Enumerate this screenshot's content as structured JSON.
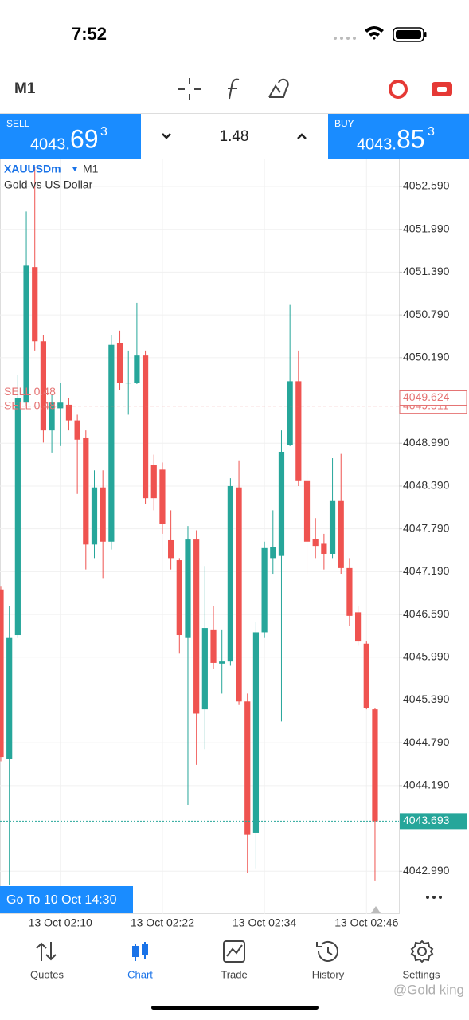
{
  "status_bar": {
    "time": "7:52"
  },
  "toolbar": {
    "timeframe": "M1"
  },
  "trade_panel": {
    "sell": {
      "label": "SELL",
      "price": "4043.",
      "price_big": "69",
      "price_sup": "3"
    },
    "volume": "1.48",
    "buy": {
      "label": "BUY",
      "price": "4043.",
      "price_big": "85",
      "price_sup": "3"
    }
  },
  "chart_data": {
    "type": "candlestick",
    "symbol": "XAUUSDm",
    "timeframe": "M1",
    "subtitle": "Gold vs US Dollar",
    "categories": [
      null,
      null,
      null,
      null,
      null,
      null,
      null,
      "13 Oct 02:10",
      null,
      null,
      null,
      null,
      null,
      null,
      null,
      null,
      null,
      null,
      null,
      "13 Oct 02:22",
      null,
      null,
      null,
      null,
      null,
      null,
      null,
      null,
      null,
      null,
      null,
      "13 Oct 02:34",
      null,
      null,
      null,
      null,
      null,
      null,
      null,
      null,
      null,
      null,
      null,
      "13 Oct 02:46",
      null
    ],
    "open": [
      4046.94,
      4044.56,
      4046.3,
      4049.56,
      4051.46,
      4050.42,
      4049.17,
      4049.48,
      4049.53,
      4049.31,
      4049.06,
      4047.57,
      4048.37,
      4047.61,
      4050.4,
      4049.83,
      4049.84,
      4050.22,
      4048.69,
      4048.62,
      4047.63,
      4047.35,
      4046.27,
      4047.64,
      4045.26,
      4046.38,
      4045.9,
      4045.93,
      4048.37,
      4045.37,
      4043.53,
      4046.34,
      4047.38,
      4047.41,
      4048.97,
      4049.86,
      4048.47,
      4047.65,
      4047.58,
      4047.44,
      4048.18,
      4047.24,
      4046.62,
      4046.18,
      4045.26
    ],
    "high": [
      4046.99,
      4046.71,
      4049.95,
      4052.24,
      4052.86,
      4050.51,
      4049.67,
      4049.84,
      4049.62,
      4049.39,
      4049.17,
      4048.61,
      4048.61,
      4050.51,
      4050.57,
      4050.29,
      4050.96,
      4050.29,
      4048.83,
      4048.72,
      4048.05,
      4047.38,
      4047.83,
      4047.77,
      4047.27,
      4046.71,
      4046.38,
      4048.5,
      4048.75,
      4045.48,
      4046.49,
      4047.61,
      4048.05,
      4049.17,
      4050.93,
      4050.29,
      4048.61,
      4047.94,
      4047.72,
      4048.78,
      4048.84,
      4047.38,
      4046.71,
      4046.21,
      4045.28
    ],
    "low": [
      4044.53,
      4042.8,
      4046.27,
      4049.51,
      4050.29,
      4049.0,
      4048.86,
      4048.95,
      4049.17,
      4048.28,
      4047.22,
      4047.38,
      4047.1,
      4047.5,
      4049.73,
      4049.39,
      4049.82,
      4048.14,
      4048.05,
      4047.72,
      4047.22,
      4046.04,
      4043.92,
      4044.48,
      4044.7,
      4045.82,
      4045.48,
      4045.87,
      4045.32,
      4042.97,
      4043.03,
      4046.27,
      4047.16,
      4045.09,
      4048.95,
      4048.39,
      4047.16,
      4047.38,
      4047.22,
      4047.38,
      4047.16,
      4046.43,
      4046.15,
      4045.26,
      4042.86
    ],
    "close": [
      4044.59,
      4046.27,
      4049.62,
      4051.48,
      4050.42,
      4049.17,
      4049.56,
      4049.56,
      4049.31,
      4049.04,
      4047.57,
      4048.37,
      4047.61,
      4050.37,
      4049.84,
      4049.84,
      4050.22,
      4048.22,
      4048.22,
      4047.86,
      4047.38,
      4046.3,
      4047.64,
      4045.2,
      4046.4,
      4045.91,
      4045.93,
      4048.39,
      4045.37,
      4043.5,
      4046.34,
      4047.52,
      4047.54,
      4048.87,
      4049.86,
      4048.47,
      4047.61,
      4047.55,
      4047.44,
      4048.18,
      4047.24,
      4046.57,
      4046.21,
      4045.28,
      4043.69
    ],
    "up_color": "#26a69a",
    "down_color": "#ef5350",
    "ylim": [
      4042.39,
      4052.97
    ],
    "yticks": [
      {
        "value": 4052.59,
        "label": "4052.590"
      },
      {
        "value": 4051.99,
        "label": "4051.990"
      },
      {
        "value": 4051.39,
        "label": "4051.390"
      },
      {
        "value": 4050.79,
        "label": "4050.790"
      },
      {
        "value": 4050.19,
        "label": "4050.190"
      },
      {
        "value": 4048.99,
        "label": "4048.990"
      },
      {
        "value": 4048.39,
        "label": "4048.390"
      },
      {
        "value": 4047.79,
        "label": "4047.790"
      },
      {
        "value": 4047.19,
        "label": "4047.190"
      },
      {
        "value": 4046.59,
        "label": "4046.590"
      },
      {
        "value": 4045.99,
        "label": "4045.990"
      },
      {
        "value": 4045.39,
        "label": "4045.390"
      },
      {
        "value": 4044.79,
        "label": "4044.790"
      },
      {
        "value": 4044.19,
        "label": "4044.190"
      },
      {
        "value": 4042.99,
        "label": "4042.990"
      }
    ],
    "grid": true,
    "orders": [
      {
        "value": 4049.624,
        "label": "SELL 0.48"
      },
      {
        "value": 4049.511,
        "label": "SELL 0.48"
      }
    ],
    "order_color": "#e57373",
    "current_price": 4043.693,
    "current_color": "#26a69a"
  },
  "go_to_button": "Go To 10 Oct 14:30",
  "tabs": [
    "Quotes",
    "Chart",
    "Trade",
    "History",
    "Settings"
  ],
  "watermark": "@Gold king"
}
